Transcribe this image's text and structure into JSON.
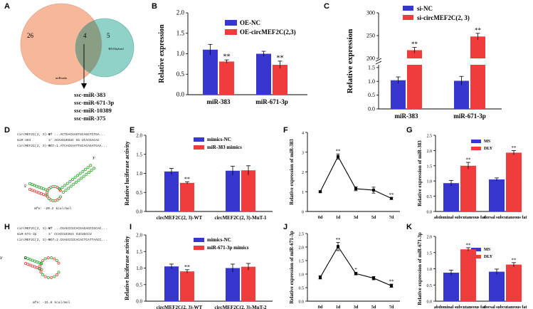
{
  "panels": {
    "A": {
      "letter": "A",
      "venn": {
        "left_label": "miRanda",
        "right_label": "RNAhybrid",
        "left_only": "26",
        "overlap": "4",
        "right_only": "5"
      },
      "mirnas": [
        "ssc-miR-383",
        "ssc-miR-671-3p",
        "ssc-miR-10389",
        "ssc-miR-375"
      ]
    },
    "D": {
      "letter": "D",
      "lines": [
        {
          "name": "circMEF2C(2, 3)-WT",
          "seq": "5' ...ACTGACGAGTGCAGGTCTGA..."
        },
        {
          "name": "miR-383",
          "seq": "3'   AGAAGUGGUC GG UCACGACAC"
        },
        {
          "name": "circMEF2C(2, 3)-MuT-1",
          "seq": "5' ...ATCACGAATTGCACAGATGAA..."
        }
      ],
      "mfe": "mfe: -20.2 kcal/mol"
    },
    "H": {
      "letter": "H",
      "lines": [
        {
          "name": "circMEF2C(2, 3)-WT",
          "seq": "5' ...CGAGCCGCACGAGAGCCGCAC..."
        },
        {
          "name": "miR-671-3p",
          "seq": "3'   CCACCUCGGA      CUCUGCCU"
        },
        {
          "name": "circMEF2C(2, 3)-MuT-2",
          "seq": "5' ...CGAGCCGCACACTCATTAACC..."
        }
      ],
      "mfe": "mfe: -31.6 kcal/mol"
    }
  },
  "colors": {
    "blue": "#3737d0",
    "red": "#f03c3c",
    "venn_left": "#f7b79a",
    "venn_right": "#7cc9be"
  },
  "chart_data": [
    {
      "panel": "B",
      "type": "bar",
      "categories": [
        "miR-383",
        "miR-671-3p"
      ],
      "series": [
        {
          "name": "OE-NC",
          "values": [
            1.1,
            1.0
          ],
          "errors": [
            0.13,
            0.06
          ],
          "marks": [
            "",
            ""
          ]
        },
        {
          "name": "OE-circMEF2C(2,3)",
          "values": [
            0.81,
            0.73
          ],
          "errors": [
            0.04,
            0.09
          ],
          "marks": [
            "**",
            "**"
          ]
        }
      ],
      "ylabel": "Relative expression",
      "ylim": [
        0,
        2.0
      ],
      "yticks": [
        "0.0",
        "0.5",
        "1.0",
        "1.5",
        "2.0"
      ],
      "legend": "top-right"
    },
    {
      "panel": "C",
      "type": "bar",
      "broken_axis": true,
      "categories": [
        "miR-383",
        "miR-671-3p"
      ],
      "series": [
        {
          "name": "si-NC",
          "values": [
            1.04,
            1.02
          ],
          "errors": [
            0.12,
            0.16
          ],
          "marks": [
            "",
            ""
          ]
        },
        {
          "name": "si-circMEF2C(2, 3)",
          "values": [
            218,
            248
          ],
          "errors": [
            6,
            7
          ],
          "marks": [
            "**",
            "**"
          ]
        }
      ],
      "ylabel": "Relative expression",
      "yticks": [
        "0.0",
        "0.5",
        "1.0",
        "1.5",
        "200",
        "250",
        "300"
      ],
      "lower_ylim": [
        0,
        1.6
      ],
      "upper_ylim": [
        200,
        300
      ],
      "legend": "top-right"
    },
    {
      "panel": "E",
      "type": "bar",
      "categories": [
        "circMEF2C(2, 3)-WT",
        "circMEF2C(2, 3)-MuT-1"
      ],
      "series": [
        {
          "name": "mimics-NC",
          "values": [
            1.05,
            1.07
          ],
          "errors": [
            0.08,
            0.12
          ],
          "marks": [
            "",
            ""
          ]
        },
        {
          "name": "miR-383 mimics",
          "values": [
            0.75,
            1.08
          ],
          "errors": [
            0.03,
            0.12
          ],
          "marks": [
            "**",
            ""
          ]
        }
      ],
      "ylabel": "Relative luciferase activity",
      "ylim": [
        0,
        2.0
      ],
      "yticks": [
        "0.0",
        "0.5",
        "1.0",
        "1.5",
        "2.0"
      ],
      "legend": "top"
    },
    {
      "panel": "F",
      "type": "line",
      "x": [
        "0d",
        "1d",
        "3d",
        "5d",
        "7d"
      ],
      "values": [
        1.0,
        2.78,
        1.15,
        1.08,
        0.66
      ],
      "errors": [
        0.04,
        0.13,
        0.1,
        0.15,
        0.05
      ],
      "marks": [
        "",
        "**",
        "",
        "",
        "**"
      ],
      "ylabel": "Relative expression of  miR-383",
      "ylim": [
        0,
        4
      ],
      "yticks": [
        "0",
        "1",
        "2",
        "3",
        "4"
      ]
    },
    {
      "panel": "G",
      "type": "bar",
      "categories": [
        "abdominal subcutaneous fat",
        "dorsal subcutaneous fat"
      ],
      "series": [
        {
          "name": "MS",
          "values": [
            0.93,
            1.05
          ],
          "errors": [
            0.09,
            0.05
          ],
          "marks": [
            "",
            ""
          ]
        },
        {
          "name": "DLY",
          "values": [
            1.5,
            1.93
          ],
          "errors": [
            0.11,
            0.07
          ],
          "marks": [
            "**",
            "**"
          ]
        }
      ],
      "ylabel": "Relative expression of miR-383",
      "ylim": [
        0,
        2.5
      ],
      "yticks": [
        "0.0",
        "0.5",
        "1.0",
        "1.5",
        "2.0",
        "2.5"
      ],
      "legend": "top-right"
    },
    {
      "panel": "I",
      "type": "bar",
      "categories": [
        "circMEF2C(2, 3)-WT",
        "circMEF2C(2, 3)-MuT-2"
      ],
      "series": [
        {
          "name": "mimics-NC",
          "values": [
            1.05,
            1.0
          ],
          "errors": [
            0.07,
            0.12
          ],
          "marks": [
            "",
            ""
          ]
        },
        {
          "name": "miR-671-3p mimics",
          "values": [
            0.9,
            1.04
          ],
          "errors": [
            0.05,
            0.1
          ],
          "marks": [
            "**",
            ""
          ]
        }
      ],
      "ylabel": "Relative luciferase activity",
      "ylim": [
        0,
        2.0
      ],
      "yticks": [
        "0.0",
        "0.5",
        "1.0",
        "1.5",
        "2.0"
      ],
      "legend": "top"
    },
    {
      "panel": "J",
      "type": "line",
      "x": [
        "0d",
        "1d",
        "3d",
        "5d",
        "7d"
      ],
      "values": [
        0.88,
        2.02,
        1.02,
        0.85,
        0.57
      ],
      "errors": [
        0.06,
        0.15,
        0.05,
        0.06,
        0.06
      ],
      "marks": [
        "",
        "**",
        "*",
        "",
        "**"
      ],
      "ylabel": "Relative expression  of  miR-671-3p",
      "ylim": [
        0,
        2.5
      ],
      "yticks": [
        "0.0",
        "0.5",
        "1.0",
        "1.5",
        "2.0",
        "2.5"
      ]
    },
    {
      "panel": "K",
      "type": "bar",
      "categories": [
        "abdominal subcutaneous fat",
        "dorsal subcutaneous fat"
      ],
      "series": [
        {
          "name": "MS",
          "values": [
            0.88,
            0.91
          ],
          "errors": [
            0.08,
            0.08
          ],
          "marks": [
            "",
            ""
          ]
        },
        {
          "name": "DLY",
          "values": [
            1.6,
            1.13
          ],
          "errors": [
            0.05,
            0.06
          ],
          "marks": [
            "**",
            "**"
          ]
        }
      ],
      "ylabel": "Relative expression of miR-671-3p",
      "ylim": [
        0,
        2.0
      ],
      "yticks": [
        "0.0",
        "0.5",
        "1.0",
        "1.5",
        "2.0"
      ],
      "legend": "right"
    }
  ]
}
